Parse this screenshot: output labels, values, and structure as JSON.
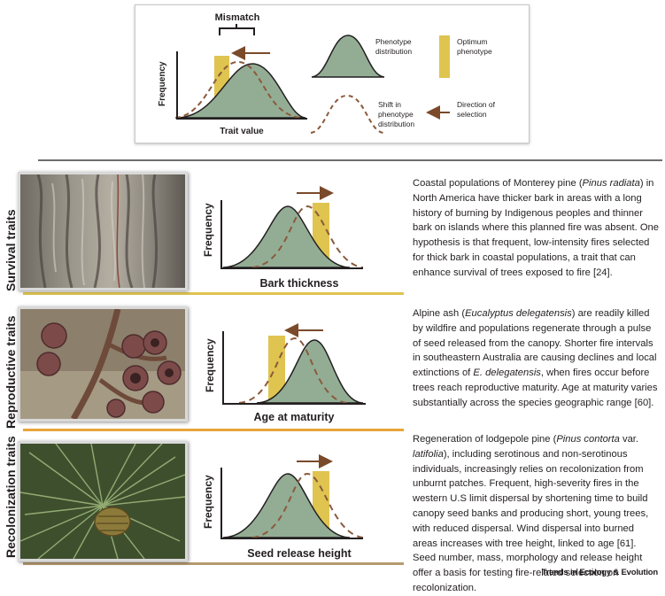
{
  "legend": {
    "mismatch_label": "Mismatch",
    "y_axis": "Frequency",
    "x_axis": "Trait value",
    "phenotype_distribution": "Phenotype distribution",
    "optimum_phenotype": "Optimum phenotype",
    "shift_in_phenotype": "Shift in phenotype distribution",
    "direction_of_selection": "Direction of selection"
  },
  "colors": {
    "distribution_fill": "#93ad94",
    "optimum_bar": "#dfc450",
    "shift_curve": "#8a5a3c",
    "arrow": "#7a4a2a",
    "survival_underline": "#dfc450",
    "reproductive_underline": "#e8a43a",
    "recolonization_underline": "#b59a70"
  },
  "panels": [
    {
      "side_label": "Survival traits",
      "photo": "tree-bark-photo",
      "y_axis": "Frequency",
      "x_axis": "Bark thickness",
      "arrow_direction": "right",
      "text_parts": [
        {
          "t": "Coastal populations of Monterey pine ("
        },
        {
          "t": "Pinus radiata",
          "i": true
        },
        {
          "t": ") in North America have thicker bark in areas with a long history of burning by Indigenous peoples and thinner bark on islands where this planned fire was absent. One hypothesis is that frequent, low-intensity fires selected for thick bark in coastal populations, a trait that can enhance survival of trees exposed to fire [24]."
        }
      ]
    },
    {
      "side_label": "Reproductive traits",
      "photo": "eucalyptus-capsules-photo",
      "y_axis": "Frequency",
      "x_axis": "Age at maturity",
      "arrow_direction": "left",
      "text_parts": [
        {
          "t": "Alpine ash ("
        },
        {
          "t": "Eucalyptus delegatensis",
          "i": true
        },
        {
          "t": ") are readily killed by wildfire and populations regenerate through a pulse of seed released from the canopy. Shorter fire intervals in southeastern Australia are causing declines and local extinctions of "
        },
        {
          "t": "E. delegatensis",
          "i": true
        },
        {
          "t": ", when fires occur before trees reach reproductive maturity. Age at maturity varies substantially across the species geographic range [60]."
        }
      ]
    },
    {
      "side_label": "Recolonization traits",
      "photo": "pine-cone-photo",
      "y_axis": "Frequency",
      "x_axis": "Seed release height",
      "arrow_direction": "right",
      "text_parts": [
        {
          "t": "Regeneration of lodgepole pine ("
        },
        {
          "t": "Pinus contorta",
          "i": true
        },
        {
          "t": " var. "
        },
        {
          "t": "latifolia",
          "i": true
        },
        {
          "t": "), including serotinous and non-serotinous individuals, increasingly relies on recolonization from unburnt patches. Frequent, high-severity fires in the western U.S limit dispersal by shortening time to build canopy seed banks and producing short, young trees, with reduced dispersal. Wind dispersal into burned areas increases with tree height, linked to age [61]. Seed number, mass, morphology and release height offer a basis for testing fire-related selection on recolonization."
        }
      ]
    }
  ],
  "footer": "Trends in Ecology & Evolution"
}
